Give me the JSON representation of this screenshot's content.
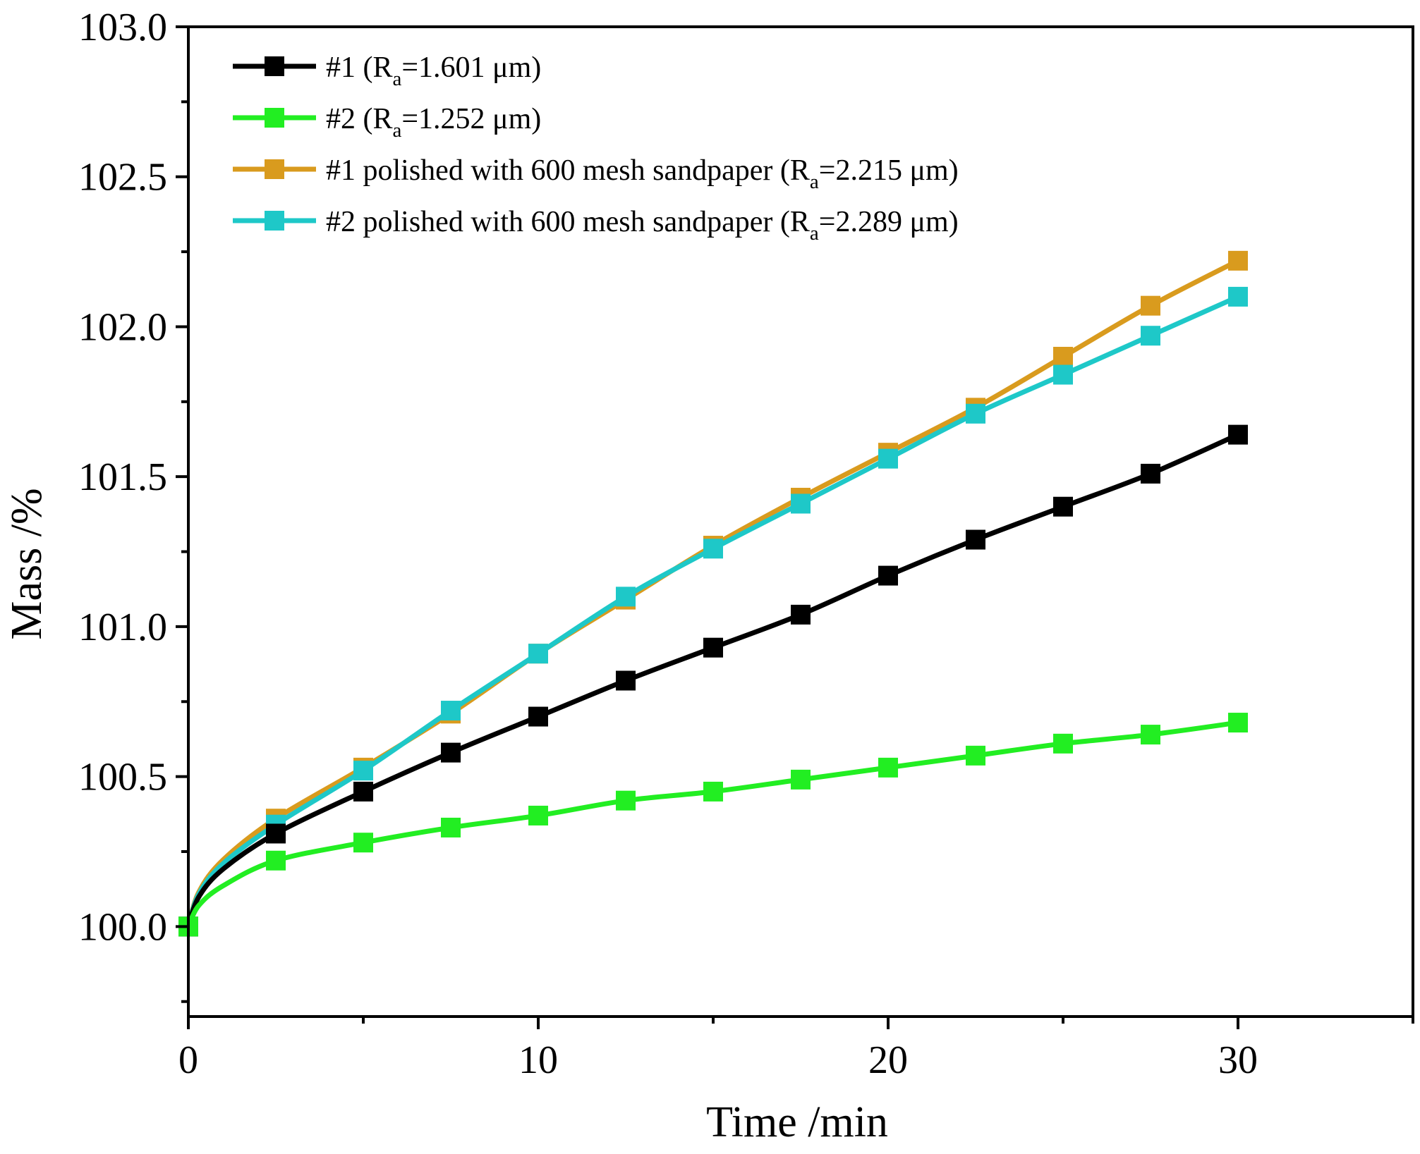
{
  "chart_data": {
    "type": "line",
    "xlabel": "Time /min",
    "ylabel": "Mass /%",
    "xlim": [
      0,
      35
    ],
    "ylim": [
      99.7,
      103.0
    ],
    "xticks": [
      0,
      10,
      20,
      30
    ],
    "xtick_labels": [
      "0",
      "10",
      "20",
      "30"
    ],
    "xminor": [
      5,
      15,
      25,
      35
    ],
    "yticks": [
      100.0,
      100.5,
      101.0,
      101.5,
      102.0,
      102.5,
      103.0
    ],
    "ytick_labels": [
      "100.0",
      "100.5",
      "101.0",
      "101.5",
      "102.0",
      "102.5",
      "103.0"
    ],
    "yminor": [
      99.75,
      100.25,
      100.75,
      101.25,
      101.75,
      102.25,
      102.75
    ],
    "legend_position": "top-left",
    "series": [
      {
        "name": "#1 polished with 600 mesh sandpaper (Ra=2.215 μm)",
        "legend": {
          "pre": "#1 polished with 600 mesh sandpaper (R",
          "sub": "a",
          "post": "=2.215 μm)"
        },
        "color": "#d99b1e",
        "x": [
          0,
          2.5,
          5,
          7.5,
          10,
          12.5,
          15,
          17.5,
          20,
          22.5,
          25,
          27.5,
          30
        ],
        "y": [
          100.0,
          100.36,
          100.53,
          100.71,
          100.91,
          101.09,
          101.27,
          101.43,
          101.58,
          101.73,
          101.9,
          102.07,
          102.22
        ]
      },
      {
        "name": "#2 polished with 600 mesh sandpaper (Ra=2.289 μm)",
        "legend": {
          "pre": "#2 polished with 600 mesh sandpaper (R",
          "sub": "a",
          "post": "=2.289 μm)"
        },
        "color": "#1ec8c8",
        "x": [
          0,
          2.5,
          5,
          7.5,
          10,
          12.5,
          15,
          17.5,
          20,
          22.5,
          25,
          27.5,
          30
        ],
        "y": [
          100.0,
          100.34,
          100.52,
          100.72,
          100.91,
          101.1,
          101.26,
          101.41,
          101.56,
          101.71,
          101.84,
          101.97,
          102.1
        ]
      },
      {
        "name": "#1 (Ra=1.601 μm)",
        "legend": {
          "pre": "#1 (R",
          "sub": "a",
          "post": "=1.601 μm)"
        },
        "color": "#000000",
        "x": [
          0,
          2.5,
          5,
          7.5,
          10,
          12.5,
          15,
          17.5,
          20,
          22.5,
          25,
          27.5,
          30
        ],
        "y": [
          100.0,
          100.31,
          100.45,
          100.58,
          100.7,
          100.82,
          100.93,
          101.04,
          101.17,
          101.29,
          101.4,
          101.51,
          101.64
        ]
      },
      {
        "name": "#2 (Ra=1.252 μm)",
        "legend": {
          "pre": "#2 (R",
          "sub": "a",
          "post": "=1.252 μm)"
        },
        "color": "#22ee22",
        "x": [
          0,
          2.5,
          5,
          7.5,
          10,
          12.5,
          15,
          17.5,
          20,
          22.5,
          25,
          27.5,
          30
        ],
        "y": [
          100.0,
          100.22,
          100.28,
          100.33,
          100.37,
          100.42,
          100.45,
          100.49,
          100.53,
          100.57,
          100.61,
          100.64,
          100.68
        ]
      }
    ],
    "legend_order": [
      2,
      3,
      0,
      1
    ]
  }
}
